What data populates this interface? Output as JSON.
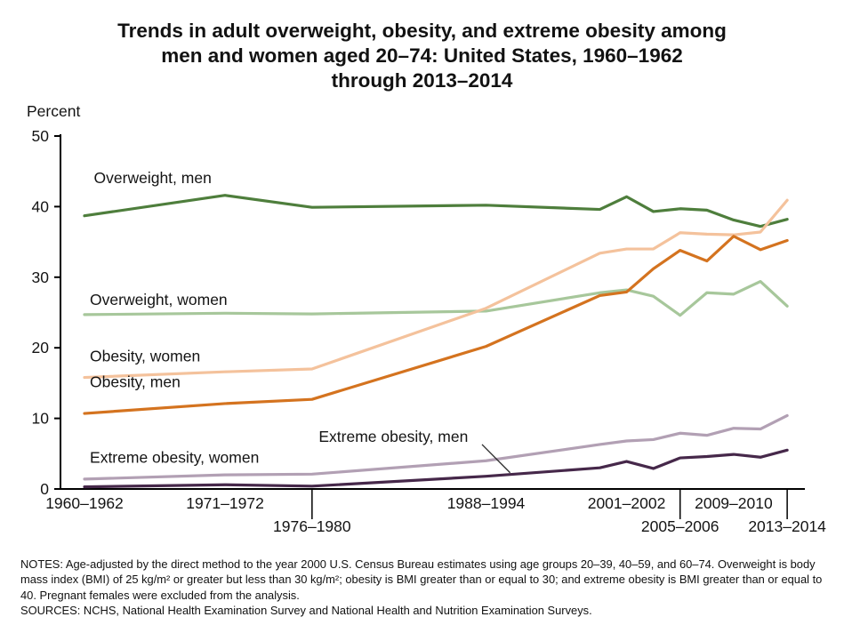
{
  "title": {
    "lines": [
      "Trends in adult overweight, obesity, and extreme obesity among",
      "men and women aged 20–74: United States, 1960–1962",
      "through 2013–2014"
    ]
  },
  "notes": {
    "notes_text": "NOTES: Age-adjusted by the direct method to the year 2000 U.S. Census Bureau estimates using age groups 20–39, 40–59, and 60–74. Overweight is body mass index (BMI) of 25 kg/m² or greater but less than 30 kg/m²; obesity is BMI greater than or equal to 30; and extreme obesity is BMI greater than or equal to 40. Pregnant females were excluded from the analysis.",
    "sources_text": "SOURCES: NCHS, National Health Examination Survey and National Health and Nutrition Examination Surveys."
  },
  "chart_data": {
    "type": "line",
    "title": "Trends in adult overweight, obesity, and extreme obesity among men and women aged 20–74: United States, 1960–1962 through 2013–2014",
    "percent_label": "Percent",
    "ylabel": "Percent",
    "ylim": [
      0,
      50
    ],
    "grid": false,
    "legend_position": "in-plot-labels",
    "x_years": [
      1961,
      1971.5,
      1978,
      1991,
      1999.5,
      2001.5,
      2003.5,
      2005.5,
      2007.5,
      2009.5,
      2011.5,
      2013.5
    ],
    "y_axis": {
      "min": 0,
      "max": 50,
      "ticks": [
        0,
        10,
        20,
        30,
        40,
        50
      ]
    },
    "x_axis": {
      "labels": [
        {
          "label": "1960–1962",
          "year": 1961,
          "row": 1,
          "tick": false
        },
        {
          "label": "1971–1972",
          "year": 1971.5,
          "row": 1,
          "tick": false
        },
        {
          "label": "1976–1980",
          "year": 1978,
          "row": 2,
          "tick": true
        },
        {
          "label": "1988–1994",
          "year": 1991,
          "row": 1,
          "tick": false
        },
        {
          "label": "2001–2002",
          "year": 2001.5,
          "row": 1,
          "tick": false
        },
        {
          "label": "2005–2006",
          "year": 2005.5,
          "row": 2,
          "tick": true
        },
        {
          "label": "2009–2010",
          "year": 2009.5,
          "row": 1,
          "tick": false
        },
        {
          "label": "2013–2014",
          "year": 2013.5,
          "row": 2,
          "tick": true
        }
      ]
    },
    "series": [
      {
        "name": "Overweight, men",
        "color": "#4e7e3c",
        "values": [
          38.7,
          41.6,
          39.9,
          40.2,
          39.6,
          41.4,
          39.3,
          39.7,
          39.5,
          38.1,
          37.2,
          38.2
        ]
      },
      {
        "name": "Overweight, women",
        "color": "#a7c79b",
        "values": [
          24.7,
          24.9,
          24.8,
          25.2,
          27.8,
          28.2,
          27.3,
          24.6,
          27.8,
          27.6,
          29.4,
          25.9
        ]
      },
      {
        "name": "Obesity, women",
        "color": "#f4c29c",
        "values": [
          15.8,
          16.6,
          17.0,
          25.6,
          33.4,
          34.0,
          34.0,
          36.3,
          36.1,
          36.0,
          36.4,
          40.9
        ]
      },
      {
        "name": "Obesity, men",
        "color": "#d4731f",
        "values": [
          10.7,
          12.1,
          12.7,
          20.2,
          27.4,
          27.9,
          31.2,
          33.8,
          32.3,
          35.8,
          33.9,
          35.2
        ]
      },
      {
        "name": "Extreme obesity, women",
        "color": "#b2a0b4",
        "values": [
          1.4,
          2.0,
          2.1,
          4.0,
          6.3,
          6.8,
          7.0,
          7.9,
          7.6,
          8.6,
          8.5,
          10.4
        ]
      },
      {
        "name": "Extreme obesity, men",
        "color": "#46284a",
        "values": [
          0.3,
          0.6,
          0.4,
          1.8,
          3.0,
          3.9,
          2.9,
          4.4,
          4.6,
          4.9,
          4.5,
          5.5
        ]
      }
    ],
    "annotations": [
      {
        "text": "Overweight, men",
        "year": 1961.7,
        "value": 43.3
      },
      {
        "text": "Overweight, women",
        "year": 1961.4,
        "value": 26.1
      },
      {
        "text": "Obesity, women",
        "year": 1961.4,
        "value": 18.1
      },
      {
        "text": "Obesity, men",
        "year": 1961.4,
        "value": 14.4
      },
      {
        "text": "Extreme obesity, men",
        "year": 1978.5,
        "value": 6.7,
        "leader": {
          "year1": 1990.7,
          "value1": 6.3,
          "year2": 1992.8,
          "value2": 2.3
        }
      },
      {
        "text": "Extreme obesity, women",
        "year": 1961.4,
        "value": 3.7
      }
    ]
  }
}
